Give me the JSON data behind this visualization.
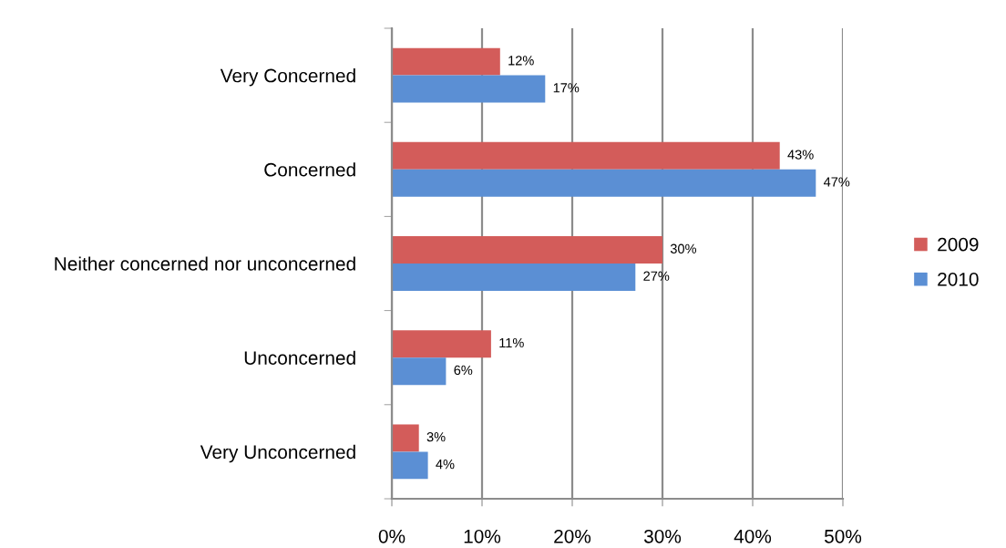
{
  "chart_data": {
    "type": "bar",
    "orientation": "horizontal",
    "categories": [
      "Very Concerned",
      "Concerned",
      "Neither concerned nor unconcerned",
      "Unconcerned",
      "Very Unconcerned"
    ],
    "series": [
      {
        "name": "2009",
        "color": "#d35c5a",
        "values": [
          12,
          43,
          30,
          11,
          3
        ],
        "value_labels": [
          "12%",
          "43%",
          "30%",
          "11%",
          "3%"
        ]
      },
      {
        "name": "2010",
        "color": "#5b8fd4",
        "values": [
          17,
          47,
          27,
          6,
          4
        ],
        "value_labels": [
          "17%",
          "47%",
          "27%",
          "6%",
          "4%"
        ]
      }
    ],
    "xlim": [
      0,
      50
    ],
    "xticks": [
      {
        "value": 0,
        "label": "0%"
      },
      {
        "value": 10,
        "label": "10%"
      },
      {
        "value": 20,
        "label": "20%"
      },
      {
        "value": 30,
        "label": "30%"
      },
      {
        "value": 40,
        "label": "40%"
      },
      {
        "value": 50,
        "label": "50%"
      }
    ],
    "grid": "x",
    "legend": "right"
  }
}
